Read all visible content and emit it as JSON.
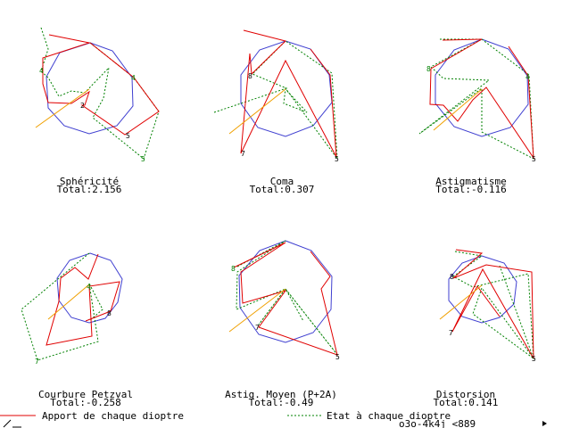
{
  "colors": {
    "polygon": "#3f3fd0",
    "contribution": "#e00000",
    "state": "#008000",
    "orange": "#f0a000",
    "text": "#000000"
  },
  "panels": [
    {
      "id": "spherical",
      "title": "Sphéricité",
      "total": "Total:2.156",
      "marker": "5",
      "marker2": "2",
      "marker3": "4"
    },
    {
      "id": "coma",
      "title": "Coma",
      "total": "Total:0.307",
      "marker": "5",
      "marker2": "8",
      "marker3": "7"
    },
    {
      "id": "astig",
      "title": "Astigmatisme",
      "total": "Total:-0.116",
      "marker": "5",
      "marker2": "8",
      "marker3": "4"
    },
    {
      "id": "petzval",
      "title": "Courbure Petzval",
      "total": "Total:-0.258",
      "marker": "8",
      "marker2": "7",
      "marker3": "4"
    },
    {
      "id": "astigmean",
      "title": "Astig. Moyen (P+2A)",
      "total": "Total:-0.49",
      "marker": "5",
      "marker2": "8",
      "marker3": "7"
    },
    {
      "id": "distortion",
      "title": "Distorsion",
      "total": "Total:0.141",
      "marker": "5",
      "marker2": "8",
      "marker3": "7"
    }
  ],
  "legend": {
    "contribution_label": "Apport de chaque dioptre",
    "state_label": "Etat à chaque dioptre",
    "status_code": "o3o-4k4j <889"
  }
}
